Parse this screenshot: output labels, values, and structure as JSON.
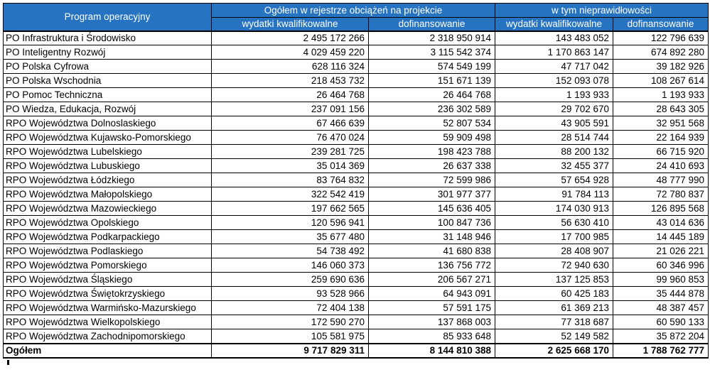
{
  "colors": {
    "header_bg": "#2673c2",
    "header_text": "#ffffff",
    "border": "#000000"
  },
  "table": {
    "col1_header": "Program operacyjny",
    "group1_header": "Ogółem w rejestrze obciążeń na projekcie",
    "group2_header": "w tym nieprawidłowości",
    "sub_headers": [
      "wydatki kwalifikowalne",
      "dofinansowanie",
      "wydatki kwalifikowalne",
      "dofinansowanie"
    ],
    "rows": [
      {
        "name": "PO Infrastruktura i Środowisko",
        "values": [
          "2 495 172 266",
          "2 318 950 914",
          "143 483 052",
          "122 796 639"
        ]
      },
      {
        "name": "PO Inteligentny Rozwój",
        "values": [
          "4 029 459 220",
          "3 115 542 374",
          "1 170 863 147",
          "674 892 280"
        ]
      },
      {
        "name": "PO Polska Cyfrowa",
        "values": [
          "628 116 324",
          "574 549 199",
          "47 717 042",
          "39 182 926"
        ]
      },
      {
        "name": "PO Polska Wschodnia",
        "values": [
          "218 453 732",
          "151 671 139",
          "152 093 078",
          "108 267 614"
        ]
      },
      {
        "name": "PO Pomoc Techniczna",
        "values": [
          "26 464 768",
          "26 464 768",
          "1 193 933",
          "1 193 933"
        ]
      },
      {
        "name": "PO Wiedza, Edukacja, Rozwój",
        "values": [
          "237 091 156",
          "236 302 589",
          "29 702 670",
          "28 643 305"
        ]
      },
      {
        "name": "RPO Województwa Dolnoslaskiego",
        "values": [
          "67 466 639",
          "52 807 534",
          "43 905 591",
          "32 951 568"
        ]
      },
      {
        "name": "RPO Województwa Kujawsko-Pomorskiego",
        "values": [
          "76 470 024",
          "59 909 498",
          "28 514 744",
          "22 164 939"
        ]
      },
      {
        "name": "RPO Województwa Lubelskiego",
        "values": [
          "239 281 725",
          "198 423 788",
          "88 200 132",
          "66 715 920"
        ]
      },
      {
        "name": "RPO Województwa Lubuskiego",
        "values": [
          "35 014 369",
          "26 637 338",
          "32 455 377",
          "24 410 693"
        ]
      },
      {
        "name": "RPO Województwa Łódzkiego",
        "values": [
          "83 764 832",
          "72 599 986",
          "57 654 928",
          "48 777 990"
        ]
      },
      {
        "name": "RPO Województwa Małopolskiego",
        "values": [
          "322 542 419",
          "301 977 377",
          "91 784 113",
          "72 780 837"
        ]
      },
      {
        "name": "RPO Województwa Mazowieckiego",
        "values": [
          "197 662 565",
          "145 636 405",
          "174 030 913",
          "126 895 568"
        ]
      },
      {
        "name": "RPO Województwa Opolskiego",
        "values": [
          "120 596 941",
          "100 847 736",
          "56 630 410",
          "43 014 636"
        ]
      },
      {
        "name": "RPO Województwa Podkarpackiego",
        "values": [
          "35 677 480",
          "31 148 946",
          "17 700 985",
          "14 445 189"
        ]
      },
      {
        "name": "RPO Województwa Podlaskiego",
        "values": [
          "54 738 492",
          "41 680 838",
          "28 408 907",
          "21 026 221"
        ]
      },
      {
        "name": "RPO Województwa Pomorskiego",
        "values": [
          "146 060 373",
          "136 756 772",
          "72 940 630",
          "60 346 996"
        ]
      },
      {
        "name": "RPO Województwa Śląskiego",
        "values": [
          "259 690 636",
          "206 567 271",
          "137 125 853",
          "99 960 853"
        ]
      },
      {
        "name": "RPO Województwa Świętokrzyskiego",
        "values": [
          "93 528 966",
          "64 943 091",
          "60 425 183",
          "35 444 878"
        ]
      },
      {
        "name": "RPO Województwa Warmińsko-Mazurskiego",
        "values": [
          "72 404 138",
          "57 591 175",
          "61 369 213",
          "48 387 457"
        ]
      },
      {
        "name": "RPO Województwa Wielkopolskiego",
        "values": [
          "172 590 270",
          "137 868 003",
          "77 318 687",
          "60 590 133"
        ]
      },
      {
        "name": "RPO Województwa Zachodnipomorskiego",
        "values": [
          "105 581 975",
          "85 933 648",
          "52 149 582",
          "35 872 204"
        ]
      }
    ],
    "total": {
      "name": "Ogółem",
      "values": [
        "9 717 829 311",
        "8 144 810 388",
        "2 625 668 170",
        "1 788 762 777"
      ]
    }
  }
}
